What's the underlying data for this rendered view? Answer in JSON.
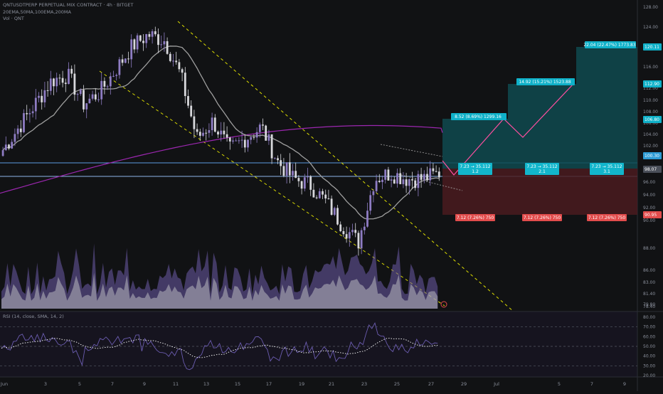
{
  "header": {
    "title": "QNTUSDTPERP PERPETUAL MIX CONTRACT · 4h · BITGET",
    "indicators": "20EMA,50MA,100EMA,200MA",
    "volume": "Vol · QNT"
  },
  "colors": {
    "background": "#111214",
    "candle_up": "#8e7cc3",
    "candle_down": "#d8d8dc",
    "ma50": "#9e9e9e",
    "ma200": "#9c27b0",
    "trendline": "#e0e000",
    "target_fill": "#0f4a4f",
    "stop_fill": "#4a1b1f",
    "entry_label": "#0fb1c9",
    "stop_label": "#e24c4c",
    "projection_path": "#ff4fa0",
    "rsi_line": "#6b5cb0"
  },
  "price_axis": {
    "ticks": [
      "128.00",
      "124.00",
      "120.00",
      "116.00",
      "112.00",
      "110.00",
      "108.00",
      "106.00",
      "104.00",
      "102.00",
      "100.00",
      "98.00",
      "96.00",
      "94.00",
      "92.00",
      "90.00",
      "88.00",
      "86.00",
      "83.00",
      "81.40",
      "79.80",
      "78.40"
    ],
    "badges": [
      {
        "text": "120.11",
        "color": "#0fb1c9"
      },
      {
        "text": "112.90",
        "color": "#0fb1c9"
      },
      {
        "text": "106.80",
        "color": "#0fb1c9"
      },
      {
        "text": "100.30",
        "color": "#2d9bd4"
      },
      {
        "text": "98.07",
        "color": "#4a4f59"
      },
      {
        "text": "90.95",
        "color": "#e24c4c"
      }
    ]
  },
  "rsi_axis": {
    "label": "RSI (14, close, SMA, 14, 2)",
    "ticks": [
      "80.00",
      "70.00",
      "60.00",
      "50.00",
      "40.00",
      "30.00",
      "20.00"
    ]
  },
  "time_axis": {
    "ticks": [
      "Jun",
      "3",
      "5",
      "7",
      "9",
      "11",
      "13",
      "15",
      "17",
      "19",
      "21",
      "23",
      "25",
      "27",
      "29",
      "Jul",
      "5",
      "7",
      "9"
    ]
  },
  "positions": [
    {
      "target": "8.52 (8.69%) 1299.16",
      "entry": "7.23 → 35.112",
      "ratio": "1.2",
      "stop": "7.12 (7.26%) 750"
    },
    {
      "target": "14.92 (15.21%) 1523.88",
      "entry": "7.23 → 35.112",
      "ratio": "2.1",
      "stop": "7.12 (7.26%) 750"
    },
    {
      "target": "22.04 (22.47%) 1773.83",
      "entry": "7.23 → 35.112",
      "ratio": "3.1",
      "stop": "7.12 (7.26%) 750"
    }
  ],
  "chart_data": {
    "type": "candlestick",
    "symbol": "QNTUSDTPERP",
    "timeframe": "4h",
    "ylim": [
      76,
      130
    ],
    "close_path": [
      [
        "Jun 1",
        104
      ],
      [
        "Jun 2",
        108
      ],
      [
        "Jun 3",
        112
      ],
      [
        "Jun 4",
        116
      ],
      [
        "Jun 5",
        117
      ],
      [
        "Jun 6",
        112
      ],
      [
        "Jun 7",
        114
      ],
      [
        "Jun 8",
        118
      ],
      [
        "Jun 9",
        122
      ],
      [
        "Jun 10",
        124
      ],
      [
        "Jun 11",
        123
      ],
      [
        "Jun 12",
        117
      ],
      [
        "Jun 13",
        106
      ],
      [
        "Jun 14",
        109
      ],
      [
        "Jun 15",
        104
      ],
      [
        "Jun 16",
        106
      ],
      [
        "Jun 17",
        108
      ],
      [
        "Jun 18",
        102
      ],
      [
        "Jun 19",
        99
      ],
      [
        "Jun 20",
        98
      ],
      [
        "Jun 21",
        95
      ],
      [
        "Jun 22",
        91
      ],
      [
        "Jun 23",
        88
      ],
      [
        "Jun 24",
        99
      ],
      [
        "Jun 25",
        100
      ],
      [
        "Jun 26",
        99
      ],
      [
        "Jun 27",
        99
      ],
      [
        "Jun 28",
        100
      ]
    ],
    "horizontal_levels": [
      100.3,
      98.07
    ],
    "rsi_last": 53
  }
}
